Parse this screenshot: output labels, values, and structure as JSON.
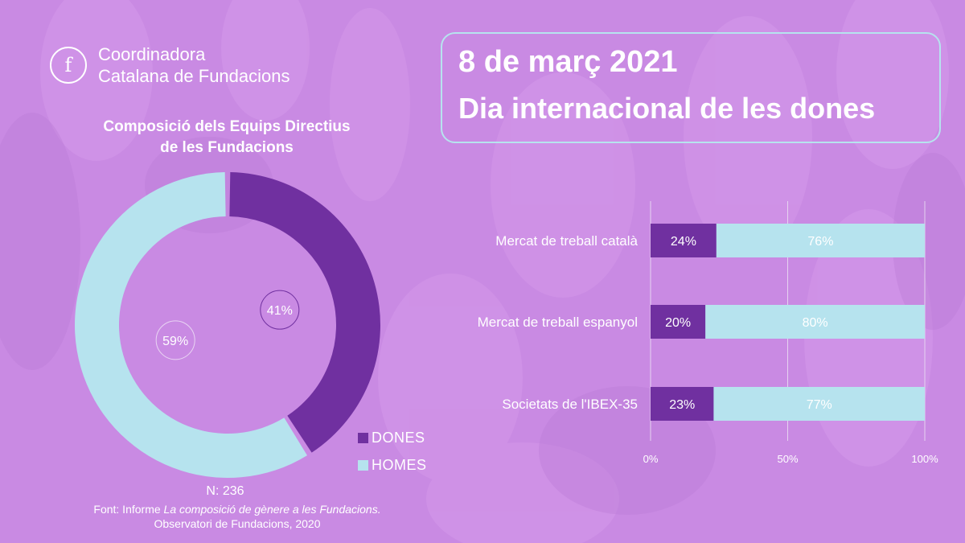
{
  "logo": {
    "mark": "f",
    "line1": "Coordinadora",
    "line2": "Catalana de Fundacions"
  },
  "header": {
    "line1": "8 de març 2021",
    "line2": "Dia internacional de les dones"
  },
  "colors": {
    "background": "#c98ae3",
    "dones": "#7030a0",
    "homes": "#b6e3ee",
    "frame": "#b6e3ee"
  },
  "chart_data": [
    {
      "type": "pie",
      "variant": "donut",
      "title_line1": "Composició dels Equips Directius",
      "title_line2": "de les Fundacions",
      "slices": [
        {
          "label": "DONES",
          "value": 41,
          "display": "41%",
          "color": "#7030a0"
        },
        {
          "label": "HOMES",
          "value": 59,
          "display": "59%",
          "color": "#b6e3ee"
        }
      ],
      "legend": [
        "DONES",
        "HOMES"
      ],
      "legend_position": "bottom-right",
      "n_label": "N: 236",
      "source_prefix": "Font: Informe ",
      "source_title": "La composició de gènere a les Fundacions.",
      "source_line2": "Observatori de Fundacions, 2020"
    },
    {
      "type": "bar",
      "orientation": "horizontal",
      "stacked": "100%",
      "categories": [
        "Mercat de treball català",
        "Mercat de treball espanyol",
        "Societats de l'IBEX-35"
      ],
      "series": [
        {
          "name": "DONES",
          "values": [
            24,
            20,
            23
          ],
          "labels": [
            "24%",
            "20%",
            "23%"
          ],
          "color": "#7030a0"
        },
        {
          "name": "HOMES",
          "values": [
            76,
            80,
            77
          ],
          "labels": [
            "76%",
            "80%",
            "77%"
          ],
          "color": "#b6e3ee"
        }
      ],
      "xlim": [
        0,
        100
      ],
      "x_ticks": [
        "0%",
        "50%",
        "100%"
      ],
      "x_tick_values": [
        0,
        50,
        100
      ],
      "grid": true
    }
  ]
}
